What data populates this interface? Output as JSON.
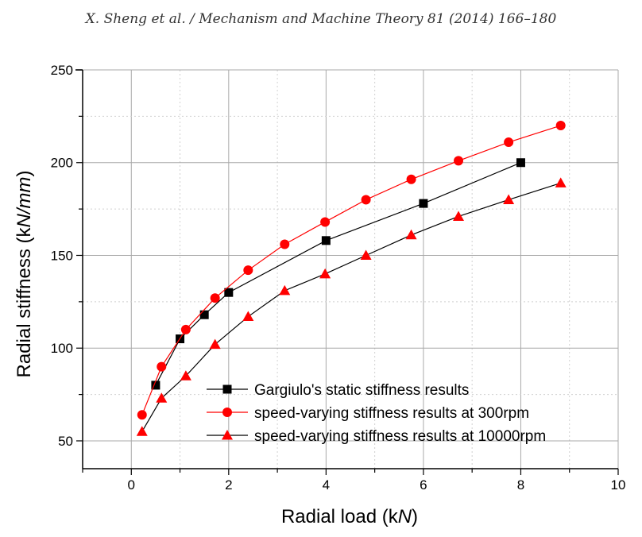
{
  "header": {
    "citation": "X. Sheng et al. / Mechanism and Machine Theory 81 (2014) 166–180"
  },
  "chart_data": {
    "type": "line",
    "title": "",
    "xlabel_pre": "Radial load (k",
    "xlabel_unit": "N",
    "xlabel_post": ")",
    "ylabel_pre": "Radial stiffness (k",
    "ylabel_unit": "N/mm",
    "ylabel_post": ")",
    "xlim": [
      -1,
      10
    ],
    "ylim": [
      35,
      250
    ],
    "xticks": [
      0,
      2,
      4,
      6,
      8,
      10
    ],
    "yticks": [
      50,
      100,
      150,
      200,
      250
    ],
    "grid": true,
    "legend_position": "bottom-right",
    "series": [
      {
        "name": "Gargiulo's static stiffness results",
        "color": "#000000",
        "marker": "square",
        "x": [
          0.5,
          1.0,
          1.5,
          2.0,
          4.0,
          6.0,
          8.0
        ],
        "y": [
          80,
          105,
          118,
          130,
          158,
          178,
          200
        ]
      },
      {
        "name": "speed-varying stiffness results at 300rpm",
        "color": "#ff0000",
        "marker": "circle",
        "x": [
          0.22,
          0.62,
          1.12,
          1.72,
          2.4,
          3.15,
          3.98,
          4.82,
          5.75,
          6.72,
          7.75,
          8.82
        ],
        "y": [
          64,
          90,
          110,
          127,
          142,
          156,
          168,
          180,
          191,
          201,
          211,
          220
        ]
      },
      {
        "name": "speed-varying stiffness results at 10000rpm",
        "color": "#000000",
        "marker_color": "#ff0000",
        "marker": "triangle",
        "x": [
          0.22,
          0.62,
          1.12,
          1.72,
          2.4,
          3.15,
          3.98,
          4.82,
          5.75,
          6.72,
          7.75,
          8.82
        ],
        "y": [
          55,
          73,
          85,
          102,
          117,
          131,
          140,
          150,
          161,
          171,
          180,
          189
        ]
      }
    ]
  }
}
